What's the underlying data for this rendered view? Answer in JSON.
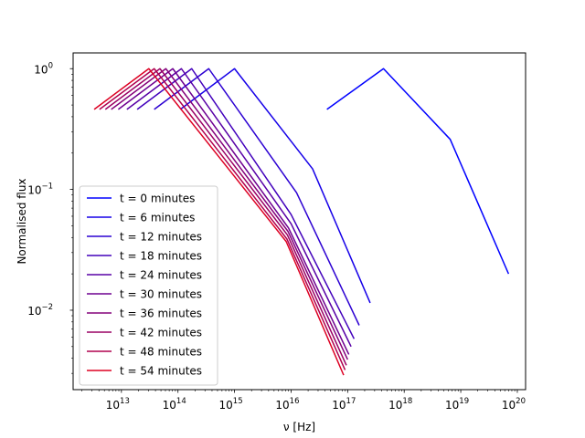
{
  "chart_data": {
    "type": "line",
    "title": "",
    "xlabel": "ν [Hz]",
    "ylabel": "Normalised flux",
    "xscale": "log",
    "yscale": "log",
    "xlim": [
      1400000000000.0,
      1.4e+20
    ],
    "ylim": [
      0.0022,
      1.35
    ],
    "x_ticks": [
      {
        "base": "10",
        "exp": "13",
        "value": 10000000000000.0
      },
      {
        "base": "10",
        "exp": "14",
        "value": 100000000000000.0
      },
      {
        "base": "10",
        "exp": "15",
        "value": 1000000000000000.0
      },
      {
        "base": "10",
        "exp": "16",
        "value": 1e+16
      },
      {
        "base": "10",
        "exp": "17",
        "value": 1e+17
      },
      {
        "base": "10",
        "exp": "18",
        "value": 1e+18
      },
      {
        "base": "10",
        "exp": "19",
        "value": 1e+19
      },
      {
        "base": "10",
        "exp": "20",
        "value": 1e+20
      }
    ],
    "y_ticks": [
      {
        "label": "10",
        "exp": "0",
        "value": 1
      },
      {
        "label": "10",
        "exp": "−1",
        "value": 0.1
      },
      {
        "label": "10",
        "exp": "−2",
        "value": 0.01
      }
    ],
    "grid": false,
    "legend_position": "lower-left",
    "series": [
      {
        "name": "t = 0 minutes",
        "color": "#0000ff",
        "x": [
          4.3e+16,
          4.3e+17,
          6.5e+18,
          7e+19
        ],
        "y": [
          0.46,
          1.0,
          0.26,
          0.02
        ]
      },
      {
        "name": "t = 6 minutes",
        "color": "#1600e8",
        "x": [
          110000000000000.0,
          1000000000000000.0,
          2.4e+16,
          2.5e+17
        ],
        "y": [
          0.46,
          1.0,
          0.148,
          0.0115
        ]
      },
      {
        "name": "t = 12 minutes",
        "color": "#2c00d2",
        "x": [
          38000000000000.0,
          350000000000000.0,
          1.25e+16,
          1.6e+17
        ],
        "y": [
          0.46,
          1.0,
          0.094,
          0.0075
        ]
      },
      {
        "name": "t = 18 minutes",
        "color": "#4200bc",
        "x": [
          19000000000000.0,
          175000000000000.0,
          1e+16,
          1.3e+17
        ],
        "y": [
          0.46,
          1.0,
          0.062,
          0.0058
        ]
      },
      {
        "name": "t = 24 minutes",
        "color": "#5800a6",
        "x": [
          12500000000000.0,
          115000000000000.0,
          1e+16,
          1.15e+17
        ],
        "y": [
          0.46,
          1.0,
          0.052,
          0.005
        ]
      },
      {
        "name": "t = 30 minutes",
        "color": "#6e0090",
        "x": [
          8800000000000.0,
          81000000000000.0,
          9000000000000000.0,
          1.05e+17
        ],
        "y": [
          0.46,
          1.0,
          0.048,
          0.0043
        ]
      },
      {
        "name": "t = 36 minutes",
        "color": "#84007a",
        "x": [
          6600000000000.0,
          61000000000000.0,
          8800000000000000.0,
          1e+17
        ],
        "y": [
          0.46,
          1.0,
          0.045,
          0.0039
        ]
      },
      {
        "name": "t = 42 minutes",
        "color": "#9a0064",
        "x": [
          5200000000000.0,
          48000000000000.0,
          8600000000000000.0,
          9.5e+16
        ],
        "y": [
          0.46,
          1.0,
          0.042,
          0.0035
        ]
      },
      {
        "name": "t = 48 minutes",
        "color": "#b0004e",
        "x": [
          4100000000000.0,
          38000000000000.0,
          8400000000000000.0,
          9e+16
        ],
        "y": [
          0.46,
          1.0,
          0.039,
          0.0032
        ]
      },
      {
        "name": "t = 54 minutes",
        "color": "#dd0022",
        "x": [
          3300000000000.0,
          30500000000000.0,
          8200000000000000.0,
          8.5e+16
        ],
        "y": [
          0.46,
          1.0,
          0.037,
          0.0029
        ]
      }
    ]
  }
}
